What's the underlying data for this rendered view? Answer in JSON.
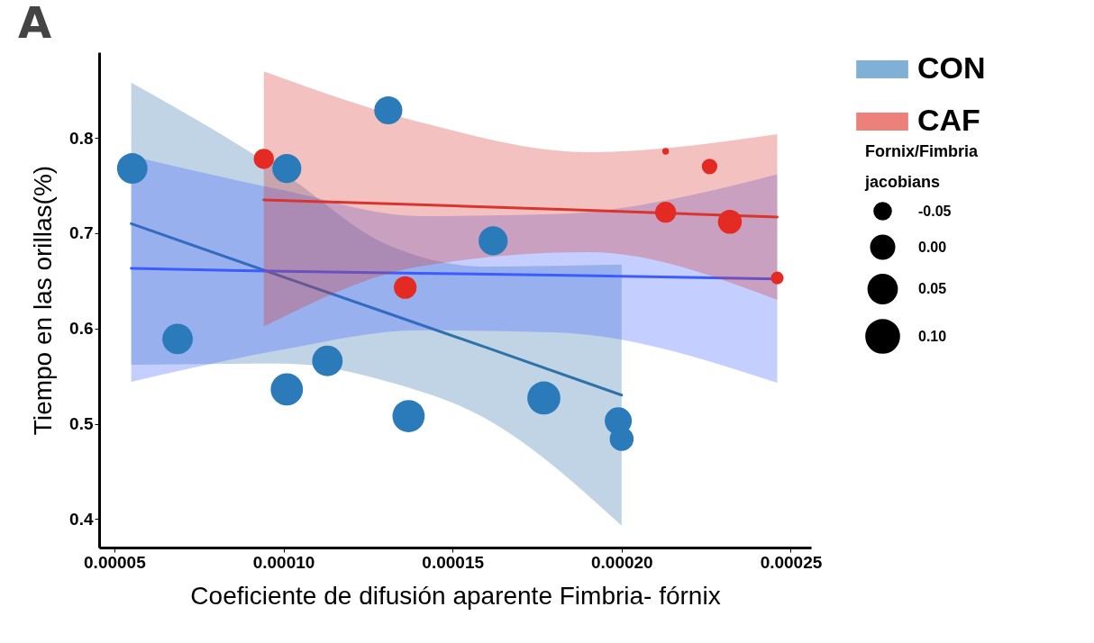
{
  "chart_data": {
    "type": "bubble",
    "title": "A",
    "xlabel": "Coeficiente de difusión aparente Fimbria- fórnix",
    "ylabel": "Tiempo en las orillas(%)",
    "legend_title": "Fornix/Fimbria jacobians",
    "legend": "right",
    "xlim": [
      4.55e-05,
      0.000256
    ],
    "ylim": [
      0.37,
      0.89
    ],
    "xticks": [
      {
        "value": 5e-05,
        "label": "0.00005"
      },
      {
        "value": 0.0001,
        "label": "0.00010"
      },
      {
        "value": 0.00015,
        "label": "0.00015"
      },
      {
        "value": 0.0002,
        "label": "0.00020"
      },
      {
        "value": 0.00025,
        "label": "0.00025"
      }
    ],
    "yticks": [
      0.4,
      0.5,
      0.6,
      0.7,
      0.8
    ],
    "size_legend": [
      {
        "value": 0.27,
        "label": "-0.05"
      },
      {
        "value": 0.52,
        "label": "0.00"
      },
      {
        "value": 0.77,
        "label": "0.05"
      },
      {
        "value": 1.02,
        "label": "0.10"
      }
    ],
    "series": [
      {
        "name": "CON",
        "type": "bubble",
        "color": "#2b7bba",
        "x": [
          5.53e-05,
          6.87e-05,
          0.000101,
          0.000131,
          0.000101,
          0.000113,
          0.000137,
          0.000162,
          0.000177,
          0.000199,
          0.0002
        ],
        "values": [
          0.768,
          0.589,
          0.768,
          0.829,
          0.536,
          0.566,
          0.508,
          0.692,
          0.527,
          0.503,
          0.484
        ],
        "sizes": [
          0.85,
          0.85,
          0.77,
          0.72,
          0.95,
          0.85,
          0.95,
          0.77,
          1,
          0.67,
          0.52
        ]
      },
      {
        "name": "CAF",
        "type": "bubble",
        "color": "#e32b24",
        "x": [
          9.42e-05,
          0.000136,
          0.000213,
          0.000226,
          0.000213,
          0.000232,
          0.000246
        ],
        "values": [
          0.778,
          0.643,
          0.786,
          0.77,
          0.722,
          0.712,
          0.653
        ],
        "sizes": [
          0.37,
          0.47,
          0.04,
          0.22,
          0.4,
          0.52,
          0.15
        ]
      },
      {
        "type": "line",
        "color": "#2f72a8",
        "x": [
          5.5e-05,
          0.0001,
          0.00013,
          0.00016,
          0.0002
        ],
        "values": [
          0.71,
          0.654,
          0.617,
          0.58,
          0.53
        ],
        "lower": [
          0.562,
          0.563,
          0.545,
          0.505,
          0.393
        ],
        "upper": [
          0.858,
          0.763,
          0.689,
          0.665,
          0.667
        ]
      },
      {
        "type": "line",
        "color": "#3d5cff",
        "x": [
          5.5e-05,
          0.0001,
          0.00014,
          0.00018,
          0.000246
        ],
        "values": [
          0.663,
          0.66,
          0.658,
          0.656,
          0.652
        ],
        "lower": [
          0.544,
          0.578,
          0.598,
          0.596,
          0.543
        ],
        "upper": [
          0.781,
          0.745,
          0.718,
          0.72,
          0.762
        ]
      },
      {
        "type": "line",
        "color": "#d8352f",
        "x": [
          9.42e-05,
          0.00014,
          0.00019,
          0.000246
        ],
        "values": [
          0.735,
          0.73,
          0.724,
          0.717
        ],
        "lower": [
          0.602,
          0.665,
          0.68,
          0.63
        ],
        "upper": [
          0.87,
          0.817,
          0.785,
          0.804
        ]
      }
    ]
  }
}
